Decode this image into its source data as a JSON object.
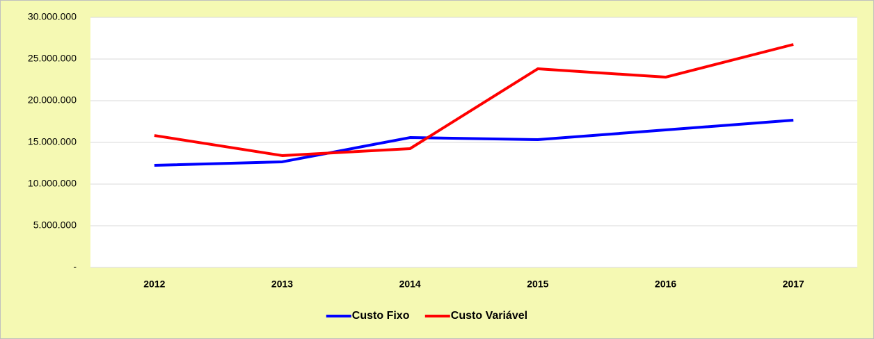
{
  "chart_data": {
    "type": "line",
    "categories": [
      "2012",
      "2013",
      "2014",
      "2015",
      "2016",
      "2017"
    ],
    "series": [
      {
        "name": "Custo Fixo",
        "color": "#0000ff",
        "values": [
          12250000,
          12670000,
          15580000,
          15330000,
          16500000,
          17670000
        ]
      },
      {
        "name": "Custo Variável",
        "color": "#ff0000",
        "values": [
          15830000,
          13420000,
          14250000,
          23830000,
          22830000,
          26750000
        ]
      }
    ],
    "ylim": [
      0,
      30000000
    ],
    "yticks": [
      {
        "value": 0,
        "label": "-"
      },
      {
        "value": 5000000,
        "label": "5.000.000"
      },
      {
        "value": 10000000,
        "label": "10.000.000"
      },
      {
        "value": 15000000,
        "label": "15.000.000"
      },
      {
        "value": 20000000,
        "label": "20.000.000"
      },
      {
        "value": 25000000,
        "label": "25.000.000"
      },
      {
        "value": 30000000,
        "label": "30.000.000"
      }
    ],
    "grid": true,
    "legend": "bottom"
  }
}
